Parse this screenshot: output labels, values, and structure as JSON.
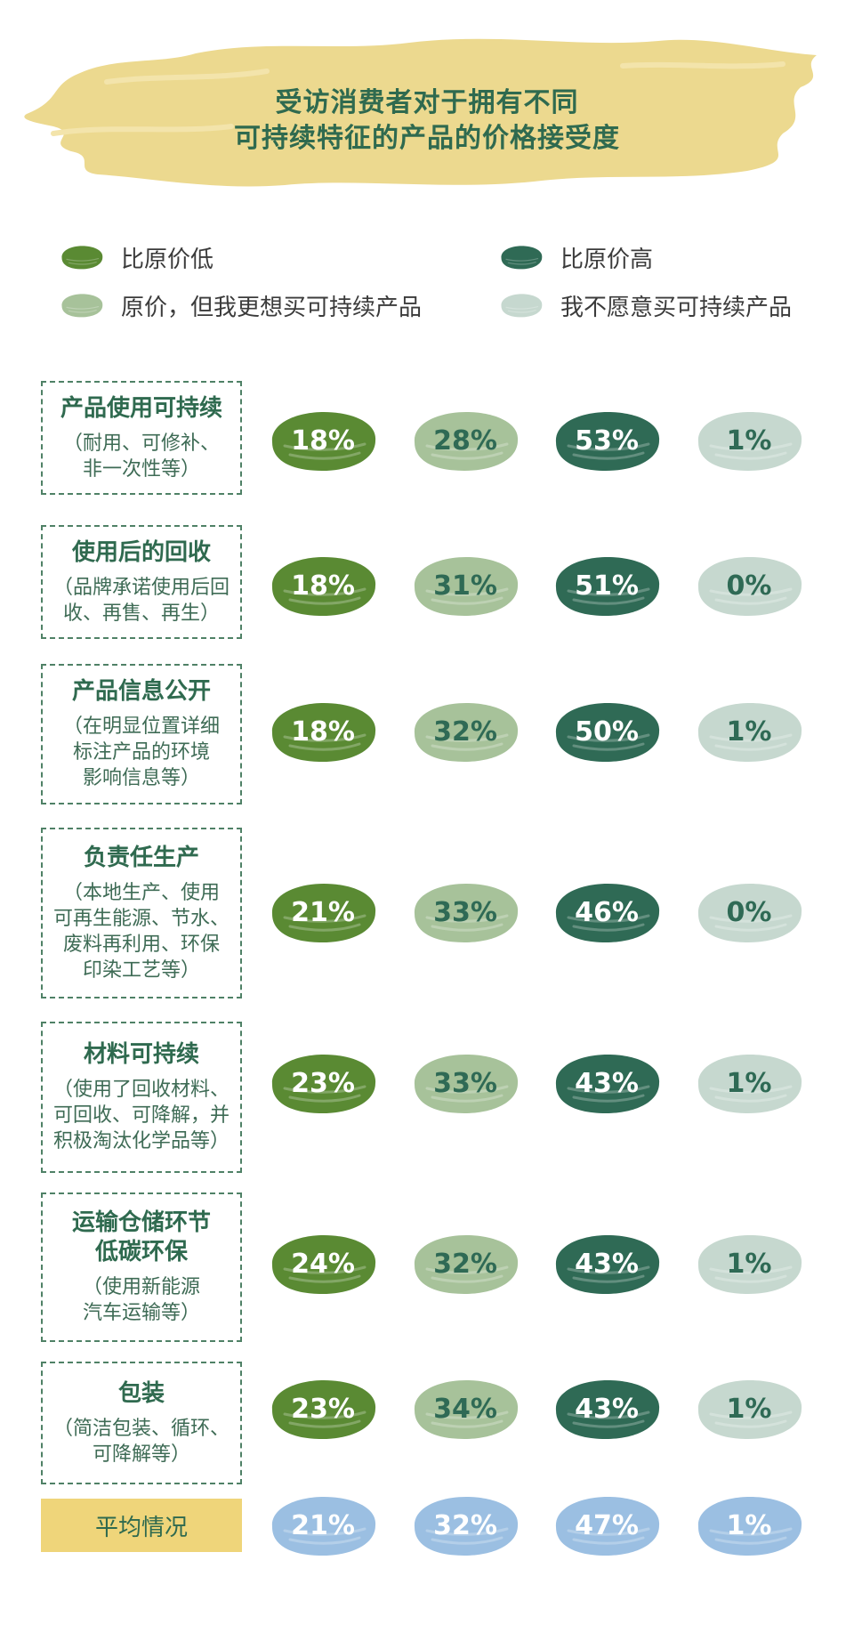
{
  "title": {
    "line1": "受访消费者对于拥有不同",
    "line2": "可持续特征的产品的价格接受度"
  },
  "colors": {
    "banner": "#ecd98f",
    "s1": "#5a8a33",
    "s2": "#a7c29a",
    "s3": "#2f6a55",
    "s4": "#c6d8cf",
    "avg_bubble": "#9bbfe2",
    "avg_text": "#ffffff",
    "avg_label_bg": "#efd57a",
    "dark_text": "#2f6a4f"
  },
  "legend": [
    {
      "label": "比原价低",
      "color": "#5a8a33"
    },
    {
      "label": "比原价高",
      "color": "#2f6a55"
    },
    {
      "label": "原价，但我更想买可持续产品",
      "color": "#a7c29a"
    },
    {
      "label": "我不愿意买可持续产品",
      "color": "#c6d8cf"
    }
  ],
  "chart_data": {
    "type": "table",
    "series": [
      {
        "name": "比原价低",
        "values": [
          18,
          18,
          18,
          21,
          23,
          24,
          23
        ]
      },
      {
        "name": "原价，但我更想买可持续产品",
        "values": [
          28,
          31,
          32,
          33,
          33,
          32,
          34
        ]
      },
      {
        "name": "比原价高",
        "values": [
          53,
          51,
          50,
          46,
          43,
          43,
          43
        ]
      },
      {
        "name": "我不愿意买可持续产品",
        "values": [
          1,
          0,
          1,
          0,
          1,
          1,
          1
        ]
      }
    ],
    "rows": [
      {
        "title": [
          "产品使用可持续"
        ],
        "desc": [
          "（耐用、可修补、",
          "非一次性等）"
        ],
        "values": [
          "18%",
          "28%",
          "53%",
          "1%"
        ]
      },
      {
        "title": [
          "使用后的回收"
        ],
        "desc": [
          "（品牌承诺使用后回",
          "收、再售、再生）"
        ],
        "values": [
          "18%",
          "31%",
          "51%",
          "0%"
        ]
      },
      {
        "title": [
          "产品信息公开"
        ],
        "desc": [
          "（在明显位置详细",
          "标注产品的环境",
          "影响信息等）"
        ],
        "values": [
          "18%",
          "32%",
          "50%",
          "1%"
        ]
      },
      {
        "title": [
          "负责任生产"
        ],
        "desc": [
          "（本地生产、使用",
          "可再生能源、节水、",
          "废料再利用、环保",
          "印染工艺等）"
        ],
        "values": [
          "21%",
          "33%",
          "46%",
          "0%"
        ]
      },
      {
        "title": [
          "材料可持续"
        ],
        "desc": [
          "（使用了回收材料、",
          "可回收、可降解，并",
          "积极淘汰化学品等）"
        ],
        "values": [
          "23%",
          "33%",
          "43%",
          "1%"
        ]
      },
      {
        "title": [
          "运输仓储环节",
          "低碳环保"
        ],
        "desc": [
          "（使用新能源",
          "汽车运输等）"
        ],
        "values": [
          "24%",
          "32%",
          "43%",
          "1%"
        ]
      },
      {
        "title": [
          "包装"
        ],
        "desc": [
          "（简洁包装、循环、",
          "可降解等）"
        ],
        "values": [
          "23%",
          "34%",
          "43%",
          "1%"
        ]
      }
    ],
    "average": {
      "label": "平均情况",
      "values": [
        "21%",
        "32%",
        "47%",
        "1%"
      ]
    }
  }
}
